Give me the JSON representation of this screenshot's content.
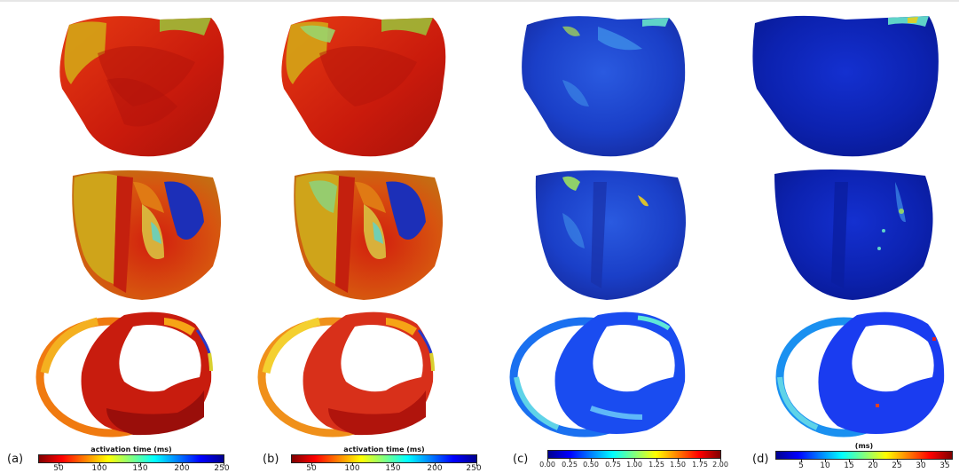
{
  "panels": [
    {
      "letter": "(a)",
      "colorbar": {
        "title": "activation time (ms)",
        "colormap": "jet_reversed",
        "ticks": [
          "50",
          "100",
          "150",
          "200",
          "250"
        ]
      }
    },
    {
      "letter": "(b)",
      "colorbar": {
        "title": "activation time (ms)",
        "colormap": "jet_reversed",
        "ticks": [
          "50",
          "100",
          "150",
          "200",
          "250"
        ]
      }
    },
    {
      "letter": "(c)",
      "colorbar": {
        "title": "",
        "colormap": "jet",
        "ticks": [
          "0.00",
          "0.25",
          "0.50",
          "0.75",
          "1.00",
          "1.25",
          "1.50",
          "1.75",
          "2.00"
        ]
      }
    },
    {
      "letter": "(d)",
      "colorbar": {
        "title": "(ms)",
        "colormap": "jet",
        "ticks": [
          "5",
          "10",
          "15",
          "20",
          "25",
          "30",
          "35"
        ]
      }
    }
  ],
  "colors": {
    "jet": [
      "#00008f",
      "#0000ff",
      "#0080ff",
      "#00ffff",
      "#80ff80",
      "#ffff00",
      "#ff8000",
      "#ff0000",
      "#800000"
    ],
    "jet_reversed": [
      "#800000",
      "#ff0000",
      "#ff8000",
      "#ffff00",
      "#80ff80",
      "#00ffff",
      "#0080ff",
      "#0000ff",
      "#00008f"
    ]
  }
}
